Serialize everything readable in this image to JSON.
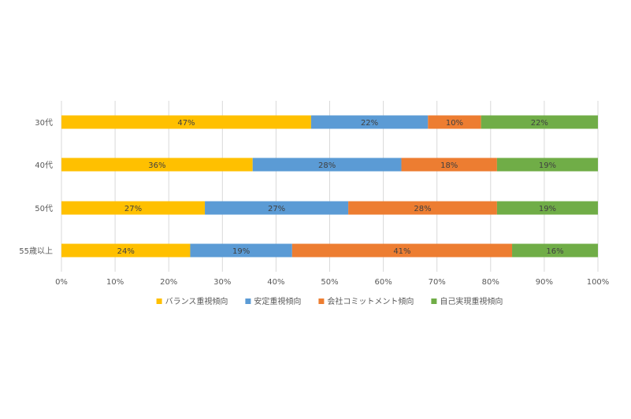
{
  "chart_data": {
    "type": "bar",
    "orientation": "horizontal",
    "stacked": true,
    "percent_stacked": true,
    "categories": [
      "30代",
      "40代",
      "50代",
      "55歳以上"
    ],
    "series": [
      {
        "name": "バランス重視傾向",
        "color": "#FFC000",
        "values": [
          47,
          36,
          27,
          24
        ],
        "labels": [
          "47%",
          "36%",
          "27%",
          "24%"
        ]
      },
      {
        "name": "安定重視傾向",
        "color": "#5B9BD5",
        "values": [
          22,
          28,
          27,
          19
        ],
        "labels": [
          "22%",
          "28%",
          "27%",
          "19%"
        ]
      },
      {
        "name": "会社コミットメント傾向",
        "color": "#ED7D31",
        "values": [
          10,
          18,
          28,
          41
        ],
        "labels": [
          "10%",
          "18%",
          "28%",
          "41%"
        ]
      },
      {
        "name": "自己実現重視傾向",
        "color": "#70AD47",
        "values": [
          22,
          19,
          19,
          16
        ],
        "labels": [
          "22%",
          "19%",
          "19%",
          "16%"
        ]
      }
    ],
    "x_ticks": [
      "0%",
      "10%",
      "20%",
      "30%",
      "40%",
      "50%",
      "60%",
      "70%",
      "80%",
      "90%",
      "100%"
    ],
    "xlim": [
      0,
      100
    ],
    "title": "",
    "xlabel": "",
    "ylabel": "",
    "grid": "vertical",
    "legend_position": "bottom"
  }
}
